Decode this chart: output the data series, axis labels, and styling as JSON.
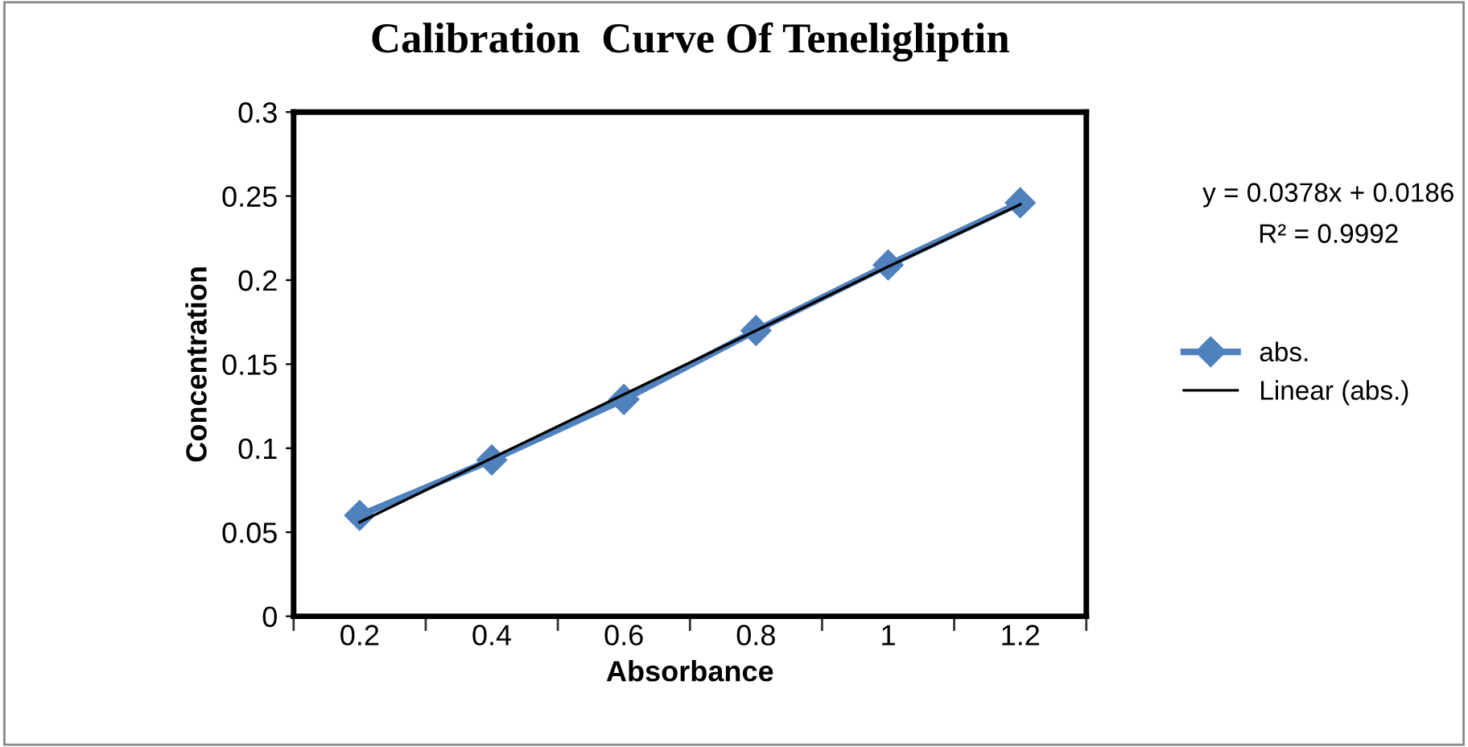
{
  "chart_data": {
    "type": "line",
    "title": "Calibration  Curve Of Teneligliptin",
    "xlabel": "Absorbance",
    "ylabel": "Concentration",
    "categories": [
      "0.2",
      "0.4",
      "0.6",
      "0.8",
      "1",
      "1.2"
    ],
    "series": [
      {
        "name": "abs.",
        "color": "#4f81bd",
        "marker": "diamond",
        "values": [
          0.06,
          0.093,
          0.129,
          0.17,
          0.209,
          0.246
        ]
      },
      {
        "name": "Linear (abs.)",
        "color": "#000000",
        "marker": "none",
        "values": [
          0.056,
          0.094,
          0.132,
          0.17,
          0.208,
          0.245
        ]
      }
    ],
    "annotations": [
      "y = 0.0378x + 0.0186",
      "R² = 0.9992"
    ],
    "ylim": [
      0,
      0.3
    ],
    "yticks": [
      0,
      0.05,
      0.1,
      0.15,
      0.2,
      0.25,
      0.3
    ],
    "grid": false,
    "legend": "right"
  }
}
